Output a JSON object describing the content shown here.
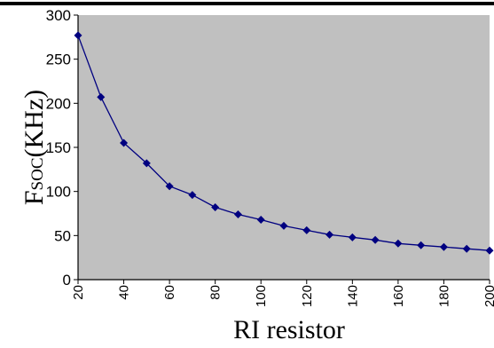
{
  "chart_data": {
    "type": "line",
    "xlabel": "RI resistor",
    "ylabel": {
      "main": "F",
      "sub": "SOC",
      "rest": "(KHz)"
    },
    "xlim": [
      20,
      200
    ],
    "ylim": [
      0,
      300
    ],
    "x_ticks": [
      20,
      40,
      60,
      80,
      100,
      120,
      140,
      160,
      180,
      200
    ],
    "y_ticks": [
      0,
      50,
      100,
      150,
      200,
      250,
      300
    ],
    "grid": false,
    "background": "#c0c0c0",
    "line_color": "#000080",
    "marker": "diamond",
    "series": [
      {
        "x": [
          20,
          30,
          40,
          50,
          60,
          70,
          80,
          90,
          100,
          110,
          120,
          130,
          140,
          150,
          160,
          170,
          180,
          190,
          200
        ],
        "y": [
          277,
          207,
          155,
          132,
          106,
          96,
          82,
          74,
          68,
          61,
          56,
          51,
          48,
          45,
          41,
          39,
          37,
          35,
          33
        ]
      }
    ]
  }
}
